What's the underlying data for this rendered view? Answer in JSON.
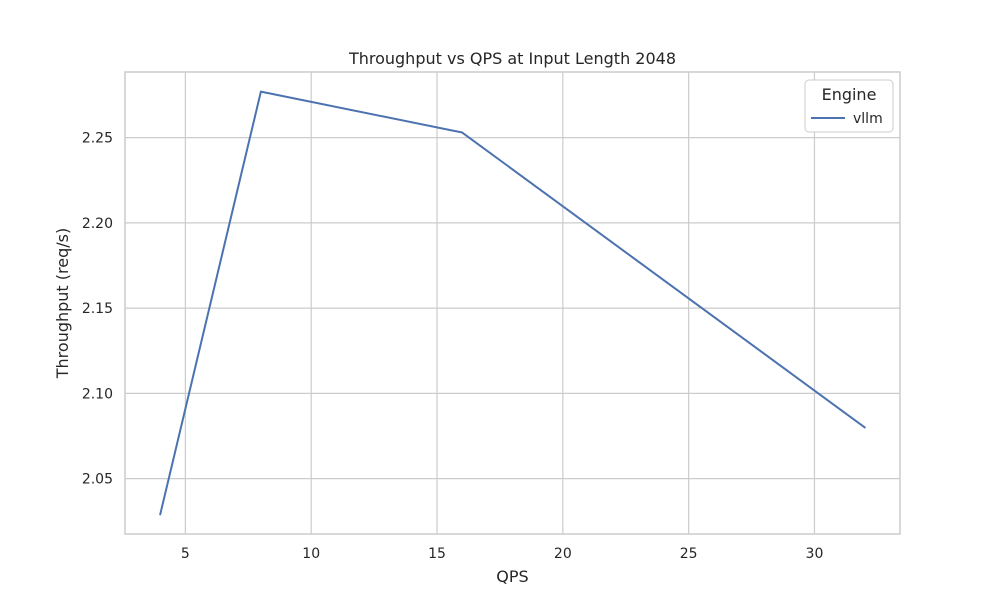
{
  "chart_data": {
    "type": "line",
    "title": "Throughput vs QPS at Input Length 2048",
    "xlabel": "QPS",
    "ylabel": "Throughput (req/s)",
    "xlim": [
      2.6,
      33.4
    ],
    "ylim": [
      2.0175,
      2.2885
    ],
    "xticks": [
      5,
      10,
      15,
      20,
      25,
      30
    ],
    "xtick_labels": [
      "5",
      "10",
      "15",
      "20",
      "25",
      "30"
    ],
    "yticks": [
      2.05,
      2.1,
      2.15,
      2.2,
      2.25
    ],
    "ytick_labels": [
      "2.05",
      "2.10",
      "2.15",
      "2.20",
      "2.25"
    ],
    "grid": true,
    "legend": {
      "title": "Engine",
      "placement": "top-right"
    },
    "series": [
      {
        "name": "vllm",
        "color": "#4c72b0",
        "x": [
          4,
          8,
          16,
          32
        ],
        "y": [
          2.029,
          2.277,
          2.253,
          2.08
        ]
      }
    ]
  }
}
